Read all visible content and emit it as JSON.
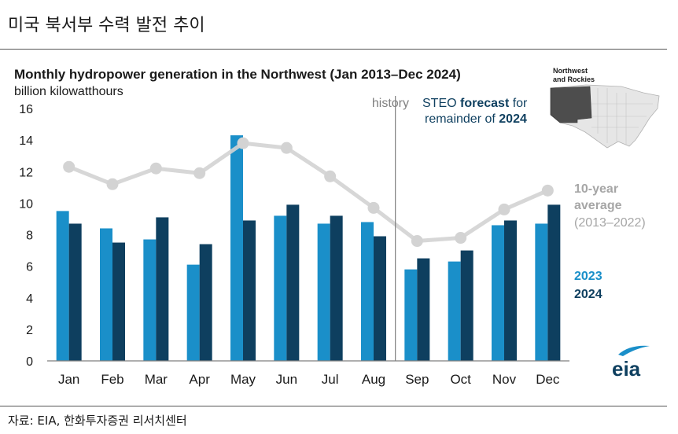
{
  "page_title": "미국 북서부 수력 발전 추이",
  "source": "자료: EIA, 한화투자증권 리서치센터",
  "colors": {
    "series_2023": "#1a8fc9",
    "series_2024": "#0e3f5f",
    "average": "#d3d3d3",
    "average_label": "#a6a6a6",
    "divider": "#808080",
    "map_region": "#4d4d4d",
    "map_other": "#e6e6e6"
  },
  "chart_data": {
    "type": "bar",
    "title": "Monthly hydropower generation in the Northwest (Jan 2013–Dec 2024)",
    "ylabel": "billion kilowatthours",
    "ylim": [
      0,
      16
    ],
    "yticks": [
      0,
      2,
      4,
      6,
      8,
      10,
      12,
      14,
      16
    ],
    "categories": [
      "Jan",
      "Feb",
      "Mar",
      "Apr",
      "May",
      "Jun",
      "Jul",
      "Aug",
      "Sep",
      "Oct",
      "Nov",
      "Dec"
    ],
    "series": [
      {
        "name": "2023",
        "type": "bar",
        "values": [
          9.5,
          8.4,
          7.7,
          6.1,
          14.3,
          9.2,
          8.7,
          8.8,
          5.8,
          6.3,
          8.6,
          8.7
        ]
      },
      {
        "name": "2024",
        "type": "bar",
        "values": [
          8.7,
          7.5,
          9.1,
          7.4,
          8.9,
          9.9,
          9.2,
          7.9,
          6.5,
          7.0,
          8.9,
          9.9
        ]
      },
      {
        "name": "10-year average (2013–2022)",
        "type": "line",
        "values": [
          12.3,
          11.2,
          12.2,
          11.9,
          13.8,
          13.5,
          11.7,
          9.7,
          7.6,
          7.8,
          9.6,
          10.8
        ]
      }
    ],
    "legend": {
      "label_2023": "2023",
      "label_2024": "2024",
      "avg_line1": "10-year",
      "avg_line2": "average",
      "avg_line3": "(2013–2022)"
    },
    "annotations": {
      "history": "history",
      "forecast_line1_a": "STEO ",
      "forecast_line1_b": "forecast",
      "forecast_line1_c": " for",
      "forecast_line2_a": "remainder of ",
      "forecast_line2_b": "2024",
      "divider_after": "Aug"
    },
    "inset_map": {
      "label_line1": "Northwest",
      "label_line2": "and Rockies"
    },
    "logo": "eia",
    "grid": false
  }
}
